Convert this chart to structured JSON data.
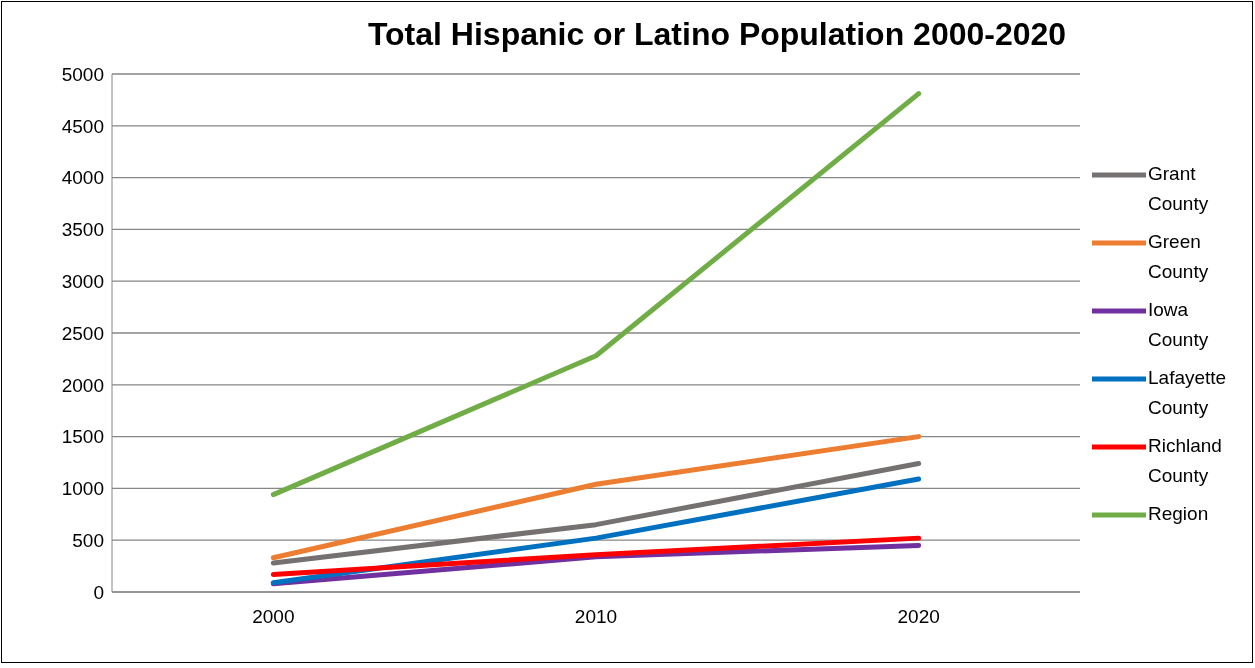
{
  "chart_data": {
    "type": "line",
    "title": "Total Hispanic or Latino Population 2000-2020",
    "categories": [
      "2000",
      "2010",
      "2020"
    ],
    "series": [
      {
        "name": "Grant County",
        "color": "#767171",
        "values": [
          280,
          650,
          1240
        ]
      },
      {
        "name": "Green County",
        "color": "#ed7d31",
        "values": [
          330,
          1040,
          1500
        ]
      },
      {
        "name": "Iowa County",
        "color": "#7030a0",
        "values": [
          80,
          340,
          450
        ]
      },
      {
        "name": "Lafayette County",
        "color": "#0070c0",
        "values": [
          90,
          520,
          1090
        ]
      },
      {
        "name": "Richland County",
        "color": "#ff0000",
        "values": [
          170,
          360,
          520
        ]
      },
      {
        "name": "Region",
        "color": "#70ad47",
        "values": [
          940,
          2280,
          4810
        ]
      }
    ],
    "ylim": [
      0,
      5000
    ],
    "yticks": [
      0,
      500,
      1000,
      1500,
      2000,
      2500,
      3000,
      3500,
      4000,
      4500,
      5000
    ],
    "grid": "y",
    "legend": "right",
    "marker": "none",
    "line_style": "solid"
  }
}
